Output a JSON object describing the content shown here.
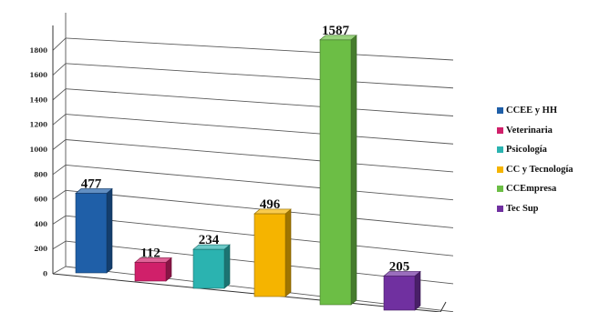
{
  "chart_data": {
    "type": "bar",
    "title": "",
    "xlabel": "",
    "ylabel": "",
    "ylim": [
      0,
      2000
    ],
    "y_ticks": [
      {
        "value": 0,
        "label": "0"
      },
      {
        "value": 200,
        "label": "200"
      },
      {
        "value": 400,
        "label": "400"
      },
      {
        "value": 600,
        "label": "600"
      },
      {
        "value": 800,
        "label": "800"
      },
      {
        "value": 1000,
        "label": "1000"
      },
      {
        "value": 1200,
        "label": "1200"
      },
      {
        "value": 1400,
        "label": "1400"
      },
      {
        "value": 1600,
        "label": "1600"
      },
      {
        "value": 1800,
        "label": "1800"
      }
    ],
    "grid": true,
    "legend_position": "right",
    "style": "3d-column",
    "categories": [
      "CCEE y HH",
      "Veterinaria",
      "Psicología",
      "CC y Tecnología",
      "CCEmpresa",
      "Tec Sup"
    ],
    "values": [
      477,
      112,
      234,
      496,
      1587,
      205
    ],
    "data_labels": [
      "477",
      "112",
      "234",
      "496",
      "1587",
      "205"
    ],
    "colors": [
      "#1f5fa8",
      "#d0206a",
      "#2bb3b0",
      "#f5b400",
      "#6cbe45",
      "#7030a0"
    ]
  }
}
